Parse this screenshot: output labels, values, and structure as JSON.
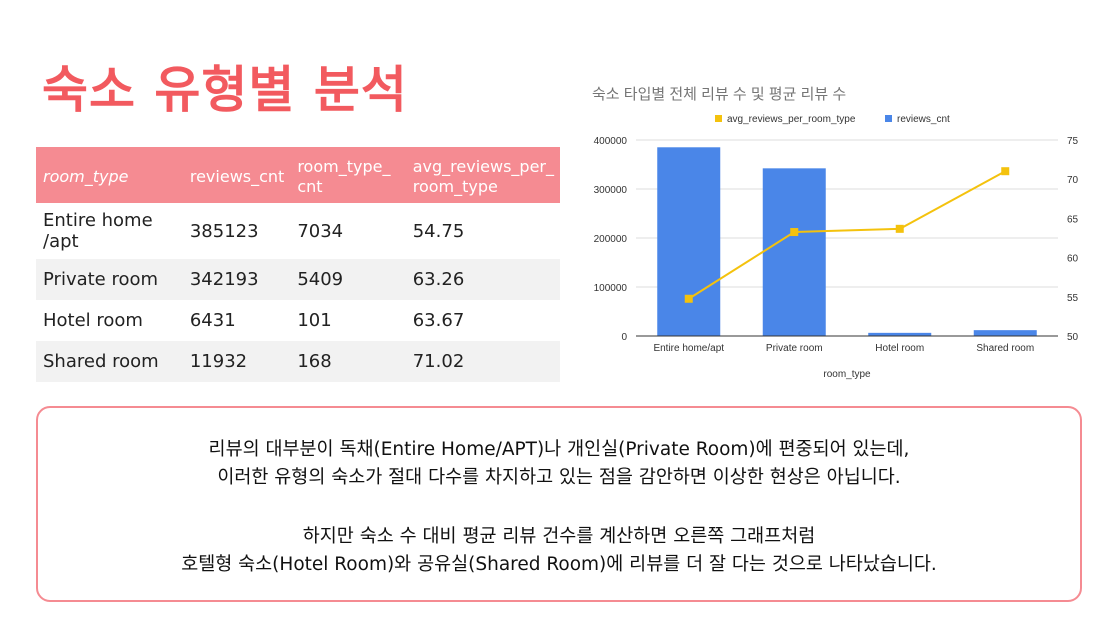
{
  "title": "숙소 유형별 분석",
  "table": {
    "headers": [
      "room_type",
      "reviews_cnt",
      "room_type_\ncnt",
      "avg_reviews_per_\nroom_type"
    ],
    "rows": [
      [
        "Entire home\n/apt",
        "385123",
        "7034",
        "54.75"
      ],
      [
        "Private room",
        "342193",
        "5409",
        "63.26"
      ],
      [
        "Hotel room",
        "6431",
        "101",
        "63.67"
      ],
      [
        "Shared room",
        "11932",
        "168",
        "71.02"
      ]
    ]
  },
  "chart_data": {
    "type": "bar",
    "title": "숙소 타입별 전체 리뷰 수 및 평균 리뷰 수",
    "xlabel": "room_type",
    "categories": [
      "Entire home/apt",
      "Private room",
      "Hotel room",
      "Shared room"
    ],
    "series": [
      {
        "name": "avg_reviews_per_room_type",
        "type": "line",
        "axis": "right",
        "color": "#f4c20d",
        "values": [
          54.75,
          63.26,
          63.67,
          71.02
        ]
      },
      {
        "name": "reviews_cnt",
        "type": "bar",
        "axis": "left",
        "color": "#4a86e8",
        "values": [
          385123,
          342193,
          6431,
          11932
        ]
      }
    ],
    "ylim_left": [
      0,
      400000
    ],
    "yticks_left": [
      "0",
      "100000",
      "200000",
      "300000",
      "400000"
    ],
    "ylim_right": [
      50,
      75
    ],
    "yticks_right": [
      "50",
      "55",
      "60",
      "65",
      "70",
      "75"
    ],
    "legend_position": "top"
  },
  "note": {
    "paragraph1": [
      "리뷰의 대부분이 독채(Entire Home/APT)나 개인실(Private Room)에 편중되어 있는데,",
      "이러한 유형의 숙소가 절대 다수를 차지하고 있는 점을 감안하면 이상한 현상은 아닙니다."
    ],
    "paragraph2": [
      "하지만 숙소 수 대비 평균 리뷰 건수를 계산하면 오른쪽 그래프처럼",
      "호텔형 숙소(Hotel Room)와 공유실(Shared Room)에 리뷰를 더 잘 다는 것으로 나타났습니다."
    ]
  }
}
